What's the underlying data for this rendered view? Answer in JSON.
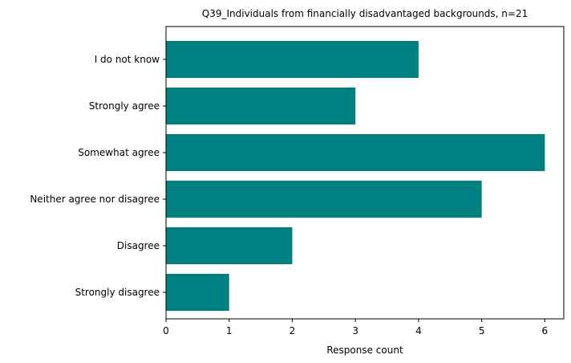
{
  "chart_data": {
    "type": "bar",
    "orientation": "horizontal",
    "title": "Q39_Individuals from financially disadvantaged backgrounds, n=21",
    "xlabel": "Response count",
    "ylabel": "",
    "categories": [
      "Strongly disagree",
      "Disagree",
      "Neither agree nor disagree",
      "Somewhat agree",
      "Strongly agree",
      "I do not know"
    ],
    "values": [
      1,
      2,
      5,
      6,
      3,
      4
    ],
    "xlim": [
      0,
      6.3
    ],
    "xticks": [
      0,
      1,
      2,
      3,
      4,
      5,
      6
    ],
    "grid": false,
    "legend": "none",
    "bar_color": "#008080"
  }
}
